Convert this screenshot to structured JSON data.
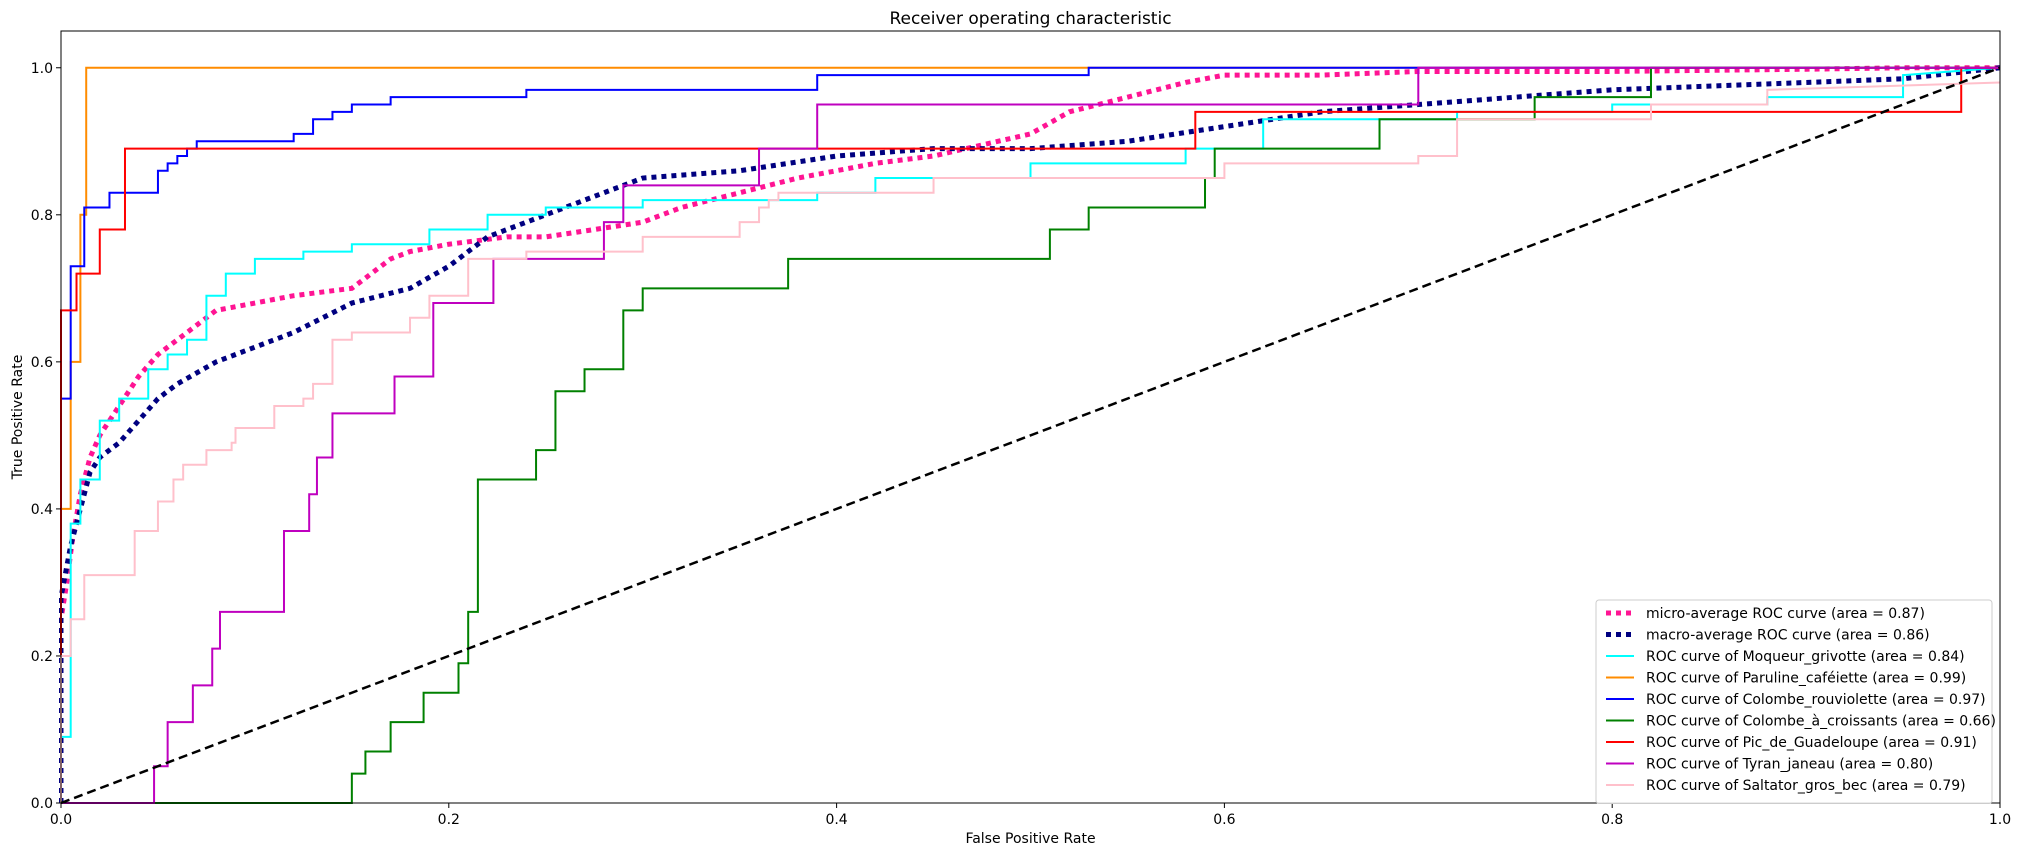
{
  "chart_data": {
    "type": "line",
    "title": "Receiver operating characteristic",
    "xlabel": "False Positive Rate",
    "ylabel": "True Positive Rate",
    "xlim": [
      0,
      1.0
    ],
    "ylim": [
      0,
      1.05
    ],
    "xticks": [
      0.0,
      0.2,
      0.4,
      0.6,
      0.8,
      1.0
    ],
    "yticks": [
      0.0,
      0.2,
      0.4,
      0.6,
      0.8,
      1.0
    ],
    "xtick_labels": [
      "0.0",
      "0.2",
      "0.4",
      "0.6",
      "0.8",
      "1.0"
    ],
    "ytick_labels": [
      "0.0",
      "0.2",
      "0.4",
      "0.6",
      "0.8",
      "1.0"
    ],
    "grid": false,
    "legend_position": "lower-right",
    "series": [
      {
        "name": "micro-average ROC curve (area = 0.87)",
        "color": "#ff1493",
        "style": "dotted",
        "width": 5,
        "x": [
          0,
          0,
          0.003,
          0.006,
          0.01,
          0.015,
          0.02,
          0.03,
          0.04,
          0.05,
          0.06,
          0.07,
          0.08,
          0.1,
          0.12,
          0.15,
          0.16,
          0.17,
          0.18,
          0.2,
          0.23,
          0.25,
          0.3,
          0.32,
          0.35,
          0.38,
          0.4,
          0.42,
          0.45,
          0.5,
          0.52,
          0.55,
          0.58,
          0.6,
          0.62,
          0.65,
          0.7,
          0.8,
          0.9,
          0.95,
          1.0
        ],
        "y": [
          0,
          0.25,
          0.3,
          0.36,
          0.42,
          0.47,
          0.5,
          0.54,
          0.58,
          0.61,
          0.63,
          0.65,
          0.67,
          0.68,
          0.69,
          0.7,
          0.72,
          0.74,
          0.75,
          0.76,
          0.77,
          0.77,
          0.79,
          0.81,
          0.83,
          0.85,
          0.86,
          0.87,
          0.88,
          0.91,
          0.94,
          0.96,
          0.98,
          0.99,
          0.99,
          0.99,
          0.995,
          0.995,
          0.998,
          1.0,
          1.0
        ]
      },
      {
        "name": "macro-average ROC curve (area = 0.86)",
        "color": "#000080",
        "style": "dotted",
        "width": 5,
        "x": [
          0,
          0,
          0.005,
          0.01,
          0.015,
          0.02,
          0.03,
          0.04,
          0.05,
          0.06,
          0.08,
          0.1,
          0.12,
          0.15,
          0.18,
          0.2,
          0.22,
          0.25,
          0.28,
          0.3,
          0.35,
          0.4,
          0.45,
          0.5,
          0.55,
          0.6,
          0.65,
          0.7,
          0.75,
          0.8,
          0.85,
          0.9,
          0.95,
          1.0
        ],
        "y": [
          0,
          0.28,
          0.35,
          0.4,
          0.45,
          0.47,
          0.49,
          0.52,
          0.55,
          0.57,
          0.6,
          0.62,
          0.64,
          0.68,
          0.7,
          0.73,
          0.77,
          0.8,
          0.83,
          0.85,
          0.86,
          0.88,
          0.89,
          0.89,
          0.9,
          0.92,
          0.94,
          0.95,
          0.96,
          0.97,
          0.975,
          0.98,
          0.985,
          1.0
        ]
      },
      {
        "name": "ROC curve of Moqueur_grivotte (area = 0.84)",
        "color": "#00ffff",
        "style": "solid",
        "width": 2,
        "x": [
          0,
          0,
          0.005,
          0.005,
          0.01,
          0.01,
          0.02,
          0.02,
          0.03,
          0.03,
          0.045,
          0.045,
          0.055,
          0.055,
          0.065,
          0.065,
          0.075,
          0.075,
          0.085,
          0.085,
          0.1,
          0.1,
          0.125,
          0.125,
          0.15,
          0.15,
          0.19,
          0.19,
          0.22,
          0.22,
          0.25,
          0.25,
          0.3,
          0.3,
          0.39,
          0.39,
          0.42,
          0.42,
          0.5,
          0.5,
          0.58,
          0.58,
          0.62,
          0.62,
          0.72,
          0.72,
          0.8,
          0.8,
          0.88,
          0.88,
          0.95,
          0.95,
          1.0
        ],
        "y": [
          0,
          0.09,
          0.09,
          0.38,
          0.38,
          0.44,
          0.44,
          0.52,
          0.52,
          0.55,
          0.55,
          0.59,
          0.59,
          0.61,
          0.61,
          0.63,
          0.63,
          0.69,
          0.69,
          0.72,
          0.72,
          0.74,
          0.74,
          0.75,
          0.75,
          0.76,
          0.76,
          0.78,
          0.78,
          0.8,
          0.8,
          0.81,
          0.81,
          0.82,
          0.82,
          0.83,
          0.83,
          0.85,
          0.85,
          0.87,
          0.87,
          0.89,
          0.89,
          0.93,
          0.93,
          0.94,
          0.94,
          0.95,
          0.95,
          0.96,
          0.96,
          0.99,
          1.0
        ]
      },
      {
        "name": "ROC curve of Paruline_caféiette (area = 0.99)",
        "color": "#ff8c00",
        "style": "solid",
        "width": 2,
        "x": [
          0,
          0,
          0.005,
          0.005,
          0.01,
          0.01,
          0.013,
          0.013,
          0.52,
          0.52,
          1.0
        ],
        "y": [
          0,
          0.4,
          0.4,
          0.6,
          0.6,
          0.8,
          0.8,
          1.0,
          1.0,
          1.0,
          1.0
        ]
      },
      {
        "name": "ROC curve of Colombe_rouviolette (area = 0.97)",
        "color": "#0000ff",
        "style": "solid",
        "width": 2,
        "x": [
          0,
          0,
          0.005,
          0.005,
          0.012,
          0.012,
          0.025,
          0.025,
          0.05,
          0.05,
          0.055,
          0.055,
          0.06,
          0.06,
          0.065,
          0.065,
          0.07,
          0.07,
          0.12,
          0.12,
          0.13,
          0.13,
          0.14,
          0.14,
          0.15,
          0.15,
          0.17,
          0.17,
          0.24,
          0.24,
          0.39,
          0.39,
          0.53,
          0.53,
          1.0
        ],
        "y": [
          0,
          0.55,
          0.55,
          0.73,
          0.73,
          0.81,
          0.81,
          0.83,
          0.83,
          0.86,
          0.86,
          0.87,
          0.87,
          0.88,
          0.88,
          0.89,
          0.89,
          0.9,
          0.9,
          0.91,
          0.91,
          0.93,
          0.93,
          0.94,
          0.94,
          0.95,
          0.95,
          0.96,
          0.96,
          0.97,
          0.97,
          0.99,
          0.99,
          1.0,
          1.0
        ]
      },
      {
        "name": "ROC curve of Colombe_à_croissants (area = 0.66)",
        "color": "#008000",
        "style": "solid",
        "width": 2,
        "x": [
          0,
          0.15,
          0.15,
          0.157,
          0.157,
          0.17,
          0.17,
          0.187,
          0.187,
          0.205,
          0.205,
          0.21,
          0.21,
          0.215,
          0.215,
          0.245,
          0.245,
          0.255,
          0.255,
          0.27,
          0.27,
          0.29,
          0.29,
          0.3,
          0.3,
          0.375,
          0.375,
          0.51,
          0.51,
          0.53,
          0.53,
          0.59,
          0.59,
          0.595,
          0.595,
          0.68,
          0.68,
          0.76,
          0.76,
          0.82,
          0.82,
          1.0
        ],
        "y": [
          0,
          0,
          0.04,
          0.04,
          0.07,
          0.07,
          0.11,
          0.11,
          0.15,
          0.15,
          0.19,
          0.19,
          0.26,
          0.26,
          0.44,
          0.44,
          0.48,
          0.48,
          0.56,
          0.56,
          0.59,
          0.59,
          0.67,
          0.67,
          0.7,
          0.7,
          0.74,
          0.74,
          0.78,
          0.78,
          0.81,
          0.81,
          0.85,
          0.85,
          0.89,
          0.89,
          0.93,
          0.93,
          0.96,
          0.96,
          1.0,
          1.0
        ]
      },
      {
        "name": "ROC curve of Pic_de_Guadeloupe (area = 0.91)",
        "color": "#ff0000",
        "style": "solid",
        "width": 2,
        "x": [
          0,
          0,
          0.008,
          0.008,
          0.02,
          0.02,
          0.033,
          0.033,
          0.585,
          0.585,
          0.98,
          0.98,
          1.0
        ],
        "y": [
          0,
          0.67,
          0.67,
          0.72,
          0.72,
          0.78,
          0.78,
          0.89,
          0.89,
          0.94,
          0.94,
          1.0,
          1.0
        ]
      },
      {
        "name": "ROC curve of Tyran_janeau (area = 0.80)",
        "color": "#bf00bf",
        "style": "solid",
        "width": 2,
        "x": [
          0,
          0.048,
          0.048,
          0.055,
          0.055,
          0.068,
          0.068,
          0.078,
          0.078,
          0.082,
          0.082,
          0.115,
          0.115,
          0.128,
          0.128,
          0.132,
          0.132,
          0.14,
          0.14,
          0.172,
          0.172,
          0.192,
          0.192,
          0.223,
          0.223,
          0.28,
          0.28,
          0.29,
          0.29,
          0.36,
          0.36,
          0.39,
          0.39,
          0.7,
          0.7,
          1.0
        ],
        "y": [
          0,
          0,
          0.05,
          0.05,
          0.11,
          0.11,
          0.16,
          0.16,
          0.21,
          0.21,
          0.26,
          0.26,
          0.37,
          0.37,
          0.42,
          0.42,
          0.47,
          0.47,
          0.53,
          0.53,
          0.58,
          0.58,
          0.68,
          0.68,
          0.74,
          0.74,
          0.79,
          0.79,
          0.84,
          0.84,
          0.89,
          0.89,
          0.95,
          0.95,
          1.0,
          1.0
        ]
      },
      {
        "name": "ROC curve of Saltator_gros_bec (area = 0.79)",
        "color": "#ffc0cb",
        "style": "solid",
        "width": 2,
        "x": [
          0,
          0,
          0.005,
          0.005,
          0.012,
          0.012,
          0.038,
          0.038,
          0.05,
          0.05,
          0.058,
          0.058,
          0.063,
          0.063,
          0.075,
          0.075,
          0.088,
          0.088,
          0.09,
          0.09,
          0.11,
          0.11,
          0.125,
          0.125,
          0.13,
          0.13,
          0.14,
          0.14,
          0.15,
          0.15,
          0.18,
          0.18,
          0.19,
          0.19,
          0.21,
          0.21,
          0.24,
          0.24,
          0.3,
          0.3,
          0.35,
          0.35,
          0.36,
          0.36,
          0.365,
          0.365,
          0.37,
          0.37,
          0.45,
          0.45,
          0.6,
          0.6,
          0.7,
          0.7,
          0.72,
          0.72,
          0.82,
          0.82,
          0.88,
          0.88,
          1.0
        ],
        "y": [
          0,
          0.2,
          0.2,
          0.25,
          0.25,
          0.31,
          0.31,
          0.37,
          0.37,
          0.41,
          0.41,
          0.44,
          0.44,
          0.46,
          0.46,
          0.48,
          0.48,
          0.49,
          0.49,
          0.51,
          0.51,
          0.54,
          0.54,
          0.55,
          0.55,
          0.57,
          0.57,
          0.63,
          0.63,
          0.64,
          0.64,
          0.66,
          0.66,
          0.69,
          0.69,
          0.74,
          0.74,
          0.75,
          0.75,
          0.77,
          0.77,
          0.79,
          0.79,
          0.81,
          0.81,
          0.82,
          0.82,
          0.83,
          0.83,
          0.85,
          0.85,
          0.87,
          0.87,
          0.88,
          0.88,
          0.93,
          0.93,
          0.95,
          0.95,
          0.97,
          0.98
        ]
      },
      {
        "name": "",
        "color": "#000000",
        "style": "dashed",
        "width": 2.5,
        "legend": false,
        "x": [
          0,
          1
        ],
        "y": [
          0,
          1
        ]
      }
    ]
  }
}
